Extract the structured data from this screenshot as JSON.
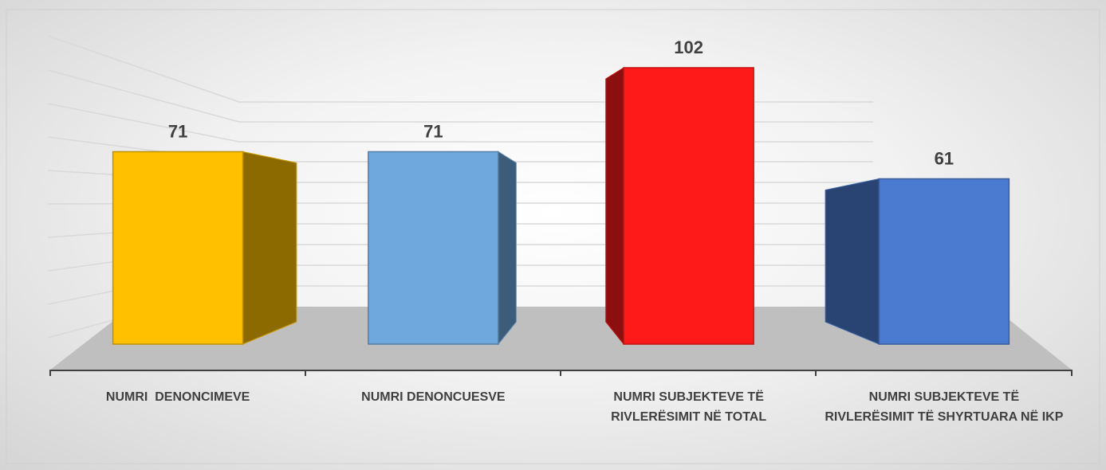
{
  "chart_data": {
    "type": "bar",
    "categories": [
      "NUMRI  DENONCIMEVE",
      "NUMRI DENONCUESVE",
      "NUMRI SUBJEKTEVE TË RIVLERËSIMIT NË TOTAL",
      "NUMRI SUBJEKTEVE TË RIVLERËSIMIT TË SHYRTUARA NË IKP"
    ],
    "values": [
      71,
      71,
      102,
      61
    ],
    "colors": [
      "#ffc000",
      "#6fa8dc",
      "#ff1a1a",
      "#4a7bd0"
    ]
  }
}
